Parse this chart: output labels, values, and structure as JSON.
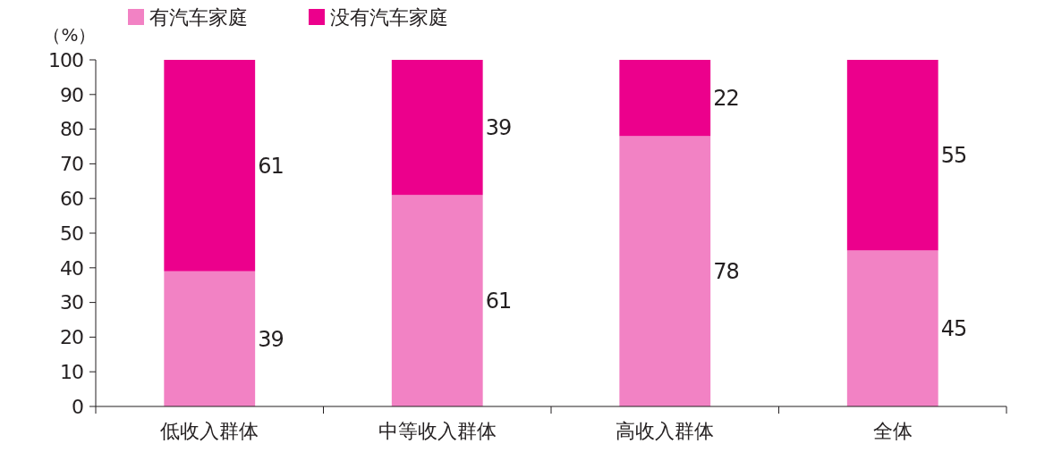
{
  "chart_data": {
    "type": "bar",
    "stacked": true,
    "ylabel": "（%）",
    "categories": [
      "低收入群体",
      "中等收入群体",
      "高收入群体",
      "全体"
    ],
    "series": [
      {
        "name": "有汽车家庭",
        "color": "#f282c4",
        "values": [
          39,
          61,
          78,
          45
        ]
      },
      {
        "name": "没有汽车家庭",
        "color": "#ec008c",
        "values": [
          61,
          39,
          22,
          55
        ]
      }
    ],
    "ylim": [
      0,
      100
    ],
    "yticks": [
      0,
      10,
      20,
      30,
      40,
      50,
      60,
      70,
      80,
      90,
      100
    ],
    "data_labels": true,
    "legend": "top left",
    "grid": false
  }
}
